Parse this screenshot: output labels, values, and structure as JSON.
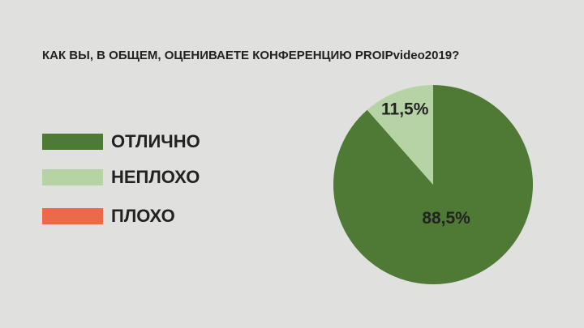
{
  "chart_data": {
    "type": "pie",
    "title": "КАК ВЫ, В ОБЩЕМ, ОЦЕНИВАЕТЕ КОНФЕРЕНЦИЮ PROIPvideo2019?",
    "series": [
      {
        "name": "ОТЛИЧНО",
        "color": "#4f7a35",
        "values": [
          88.5
        ],
        "value_labels": [
          "88,5%"
        ]
      },
      {
        "name": "НЕПЛОХО",
        "color": "#b6d3a6",
        "values": [
          11.5
        ],
        "value_labels": [
          "11,5%"
        ]
      },
      {
        "name": "ПЛОХО",
        "color": "#ec6a4a",
        "values": [
          0
        ],
        "value_labels": [
          null
        ]
      }
    ],
    "legend": "left"
  }
}
